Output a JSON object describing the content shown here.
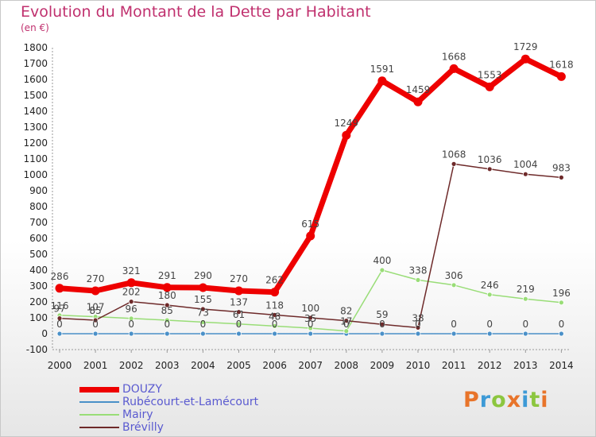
{
  "header": {
    "title": "Evolution du Montant de la Dette par Habitant",
    "subtitle": "(en €)"
  },
  "logo": {
    "text": "Proxiti",
    "colors": [
      "#e8742a",
      "#3d9ad6",
      "#8cc63f",
      "#e8742a",
      "#3d9ad6",
      "#8cc63f",
      "#e8742a"
    ]
  },
  "chart_data": {
    "type": "line",
    "title": "Evolution du Montant de la Dette par Habitant",
    "subtitle": "(en €)",
    "xlabel": "",
    "ylabel": "",
    "x": [
      "2000",
      "2001",
      "2002",
      "2003",
      "2004",
      "2005",
      "2006",
      "2007",
      "2008",
      "2009",
      "2010",
      "2011",
      "2012",
      "2013",
      "2014"
    ],
    "ylim": [
      -100,
      1800
    ],
    "yticks": [
      -100,
      0,
      100,
      200,
      300,
      400,
      500,
      600,
      700,
      800,
      900,
      1000,
      1100,
      1200,
      1300,
      1400,
      1500,
      1600,
      1700,
      1800
    ],
    "grid": false,
    "legend_position": "bottom-left",
    "series": [
      {
        "name": "DOUZY",
        "color": "#ee0000",
        "values": [
          286,
          270,
          321,
          291,
          290,
          270,
          262,
          615,
          1249,
          1591,
          1459,
          1668,
          1553,
          1729,
          1618
        ]
      },
      {
        "name": "Rubécourt-et-Lamécourt",
        "color": "#4a90c8",
        "values": [
          0,
          0,
          0,
          0,
          0,
          0,
          0,
          0,
          0,
          0,
          0,
          0,
          0,
          0,
          0
        ]
      },
      {
        "name": "Mairy",
        "color": "#99dd77",
        "values": [
          116,
          107,
          96,
          85,
          73,
          61,
          48,
          35,
          17,
          400,
          338,
          306,
          246,
          219,
          196
        ]
      },
      {
        "name": "Brévilly",
        "color": "#6e2a2a",
        "values": [
          97,
          85,
          202,
          180,
          155,
          137,
          118,
          100,
          82,
          59,
          38,
          1068,
          1036,
          1004,
          983
        ]
      }
    ]
  }
}
